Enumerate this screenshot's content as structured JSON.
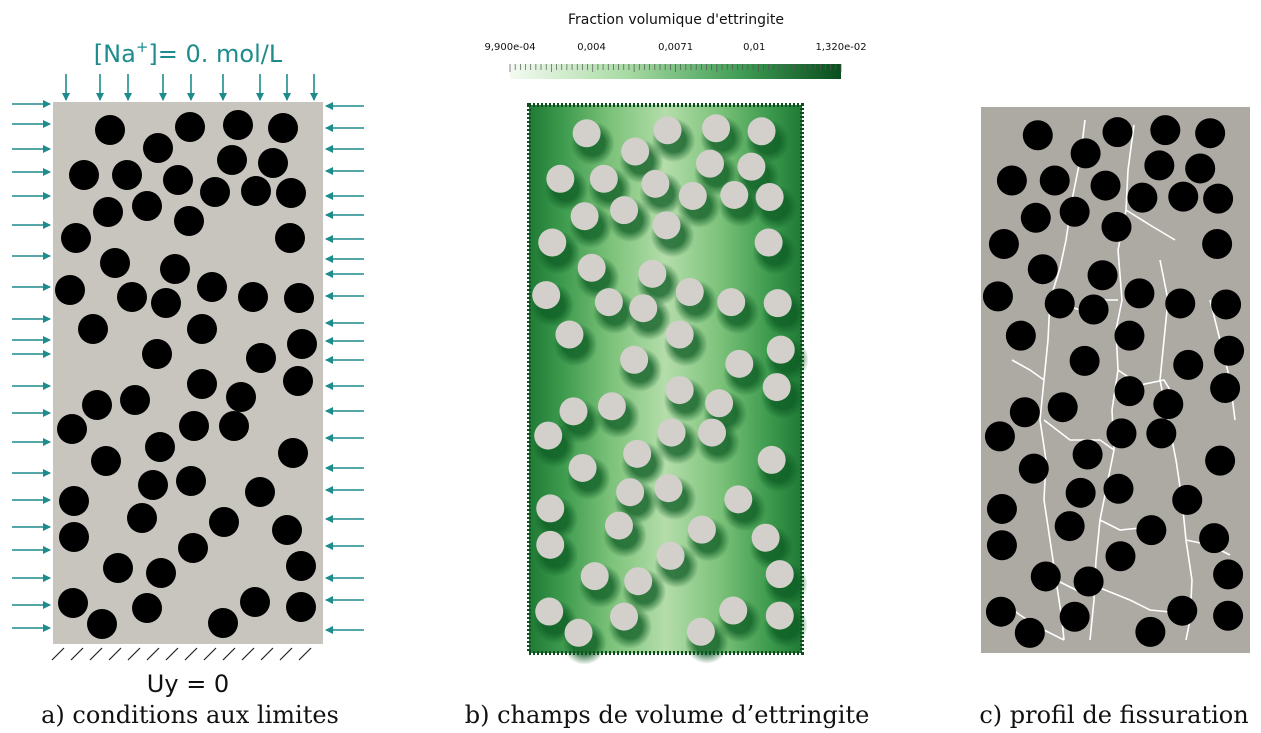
{
  "panel_a": {
    "top_bc_prefix": "[Na",
    "top_bc_superscript": "+",
    "top_bc_suffix": "]= 0. mol/L",
    "bottom_bc": "Uy = 0",
    "caption": "a) conditions aux limites"
  },
  "panel_b": {
    "colorbar_title": "Fraction volumique d'ettringite",
    "colorbar_ticks": [
      "9,900e-04",
      "0,004",
      "0,0071",
      "0,01",
      "1,320e-02"
    ],
    "colorbar_range": [
      0.00099,
      0.0132
    ],
    "caption": "b) champs de volume d’ettringite"
  },
  "panel_c": {
    "caption": "c) profil de fissuration"
  },
  "colors": {
    "matrix_grey": "#c8c5bf",
    "crack_matrix_grey": "#adaaa4",
    "aggregate_black": "#000000",
    "aggregate_light": "#d3d0cb",
    "arrow_teal": "#1e8c8c",
    "green_dark": "#0a5a23",
    "green_light": "#f0f8ec"
  }
}
